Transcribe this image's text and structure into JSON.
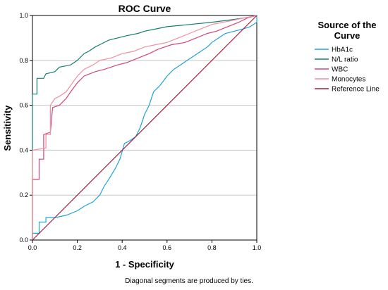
{
  "chart_data": {
    "type": "line",
    "title": "ROC Curve",
    "xlabel": "1 - Specificity",
    "ylabel": "Sensitivity",
    "xlim": [
      0,
      1
    ],
    "ylim": [
      0,
      1
    ],
    "x_ticks": [
      "0.0",
      "0.2",
      "0.4",
      "0.6",
      "0.8",
      "1.0"
    ],
    "y_ticks": [
      "0.0",
      "0.2",
      "0.4",
      "0.6",
      "0.8",
      "1.0"
    ],
    "grid": "horizontal",
    "footnote": "Diagonal segments are produced by ties.",
    "legend": {
      "title_lines": [
        "Source of the",
        "Curve"
      ],
      "placement": "right"
    },
    "series": [
      {
        "name": "HbA1c",
        "color": "#1ea5d6",
        "points": [
          [
            0,
            0
          ],
          [
            0,
            0.03
          ],
          [
            0.03,
            0.03
          ],
          [
            0.03,
            0.08
          ],
          [
            0.06,
            0.08
          ],
          [
            0.06,
            0.1
          ],
          [
            0.1,
            0.1
          ],
          [
            0.15,
            0.11
          ],
          [
            0.2,
            0.13
          ],
          [
            0.23,
            0.15
          ],
          [
            0.27,
            0.17
          ],
          [
            0.3,
            0.2
          ],
          [
            0.32,
            0.24
          ],
          [
            0.34,
            0.27
          ],
          [
            0.37,
            0.32
          ],
          [
            0.39,
            0.36
          ],
          [
            0.41,
            0.43
          ],
          [
            0.43,
            0.44
          ],
          [
            0.46,
            0.46
          ],
          [
            0.48,
            0.5
          ],
          [
            0.5,
            0.56
          ],
          [
            0.52,
            0.6
          ],
          [
            0.54,
            0.66
          ],
          [
            0.57,
            0.69
          ],
          [
            0.6,
            0.73
          ],
          [
            0.63,
            0.76
          ],
          [
            0.66,
            0.78
          ],
          [
            0.69,
            0.8
          ],
          [
            0.72,
            0.82
          ],
          [
            0.75,
            0.84
          ],
          [
            0.78,
            0.86
          ],
          [
            0.8,
            0.88
          ],
          [
            0.83,
            0.9
          ],
          [
            0.86,
            0.92
          ],
          [
            0.9,
            0.93
          ],
          [
            0.94,
            0.94
          ],
          [
            0.97,
            0.95
          ],
          [
            1.0,
            0.97
          ],
          [
            1.0,
            1.0
          ]
        ]
      },
      {
        "name": "N/L ratio",
        "color": "#157f6f",
        "points": [
          [
            0,
            0
          ],
          [
            0,
            0.4
          ],
          [
            0,
            0.65
          ],
          [
            0.02,
            0.65
          ],
          [
            0.02,
            0.72
          ],
          [
            0.05,
            0.72
          ],
          [
            0.06,
            0.74
          ],
          [
            0.1,
            0.75
          ],
          [
            0.12,
            0.77
          ],
          [
            0.17,
            0.78
          ],
          [
            0.2,
            0.8
          ],
          [
            0.23,
            0.83
          ],
          [
            0.25,
            0.84
          ],
          [
            0.28,
            0.86
          ],
          [
            0.3,
            0.87
          ],
          [
            0.34,
            0.89
          ],
          [
            0.38,
            0.9
          ],
          [
            0.42,
            0.91
          ],
          [
            0.47,
            0.92
          ],
          [
            0.5,
            0.93
          ],
          [
            0.55,
            0.94
          ],
          [
            0.6,
            0.95
          ],
          [
            0.7,
            0.96
          ],
          [
            0.8,
            0.97
          ],
          [
            0.88,
            0.98
          ],
          [
            0.95,
            0.99
          ],
          [
            1.0,
            1.0
          ]
        ]
      },
      {
        "name": "WBC",
        "color": "#d2467a",
        "points": [
          [
            0,
            0
          ],
          [
            0,
            0.27
          ],
          [
            0.03,
            0.27
          ],
          [
            0.03,
            0.36
          ],
          [
            0.05,
            0.36
          ],
          [
            0.05,
            0.47
          ],
          [
            0.08,
            0.48
          ],
          [
            0.09,
            0.59
          ],
          [
            0.12,
            0.6
          ],
          [
            0.15,
            0.63
          ],
          [
            0.17,
            0.66
          ],
          [
            0.2,
            0.7
          ],
          [
            0.23,
            0.73
          ],
          [
            0.28,
            0.75
          ],
          [
            0.32,
            0.76
          ],
          [
            0.38,
            0.78
          ],
          [
            0.42,
            0.79
          ],
          [
            0.47,
            0.81
          ],
          [
            0.52,
            0.83
          ],
          [
            0.56,
            0.85
          ],
          [
            0.62,
            0.87
          ],
          [
            0.68,
            0.88
          ],
          [
            0.73,
            0.9
          ],
          [
            0.78,
            0.92
          ],
          [
            0.82,
            0.93
          ],
          [
            0.87,
            0.95
          ],
          [
            0.92,
            0.97
          ],
          [
            0.96,
            0.99
          ],
          [
            1.0,
            1.0
          ]
        ]
      },
      {
        "name": "Monocytes",
        "color": "#f28fa2",
        "points": [
          [
            0,
            0
          ],
          [
            0,
            0.4
          ],
          [
            0.06,
            0.41
          ],
          [
            0.06,
            0.47
          ],
          [
            0.08,
            0.47
          ],
          [
            0.08,
            0.6
          ],
          [
            0.1,
            0.63
          ],
          [
            0.12,
            0.64
          ],
          [
            0.15,
            0.66
          ],
          [
            0.2,
            0.73
          ],
          [
            0.23,
            0.76
          ],
          [
            0.27,
            0.78
          ],
          [
            0.3,
            0.8
          ],
          [
            0.35,
            0.81
          ],
          [
            0.4,
            0.83
          ],
          [
            0.45,
            0.84
          ],
          [
            0.5,
            0.86
          ],
          [
            0.55,
            0.87
          ],
          [
            0.6,
            0.88
          ],
          [
            0.65,
            0.9
          ],
          [
            0.7,
            0.92
          ],
          [
            0.75,
            0.94
          ],
          [
            0.8,
            0.96
          ],
          [
            0.85,
            0.97
          ],
          [
            0.9,
            0.98
          ],
          [
            0.95,
            0.99
          ],
          [
            1.0,
            1.0
          ]
        ]
      },
      {
        "name": "Reference Line",
        "color": "#a31d3c",
        "points": [
          [
            0,
            0
          ],
          [
            1,
            1
          ]
        ]
      }
    ]
  }
}
